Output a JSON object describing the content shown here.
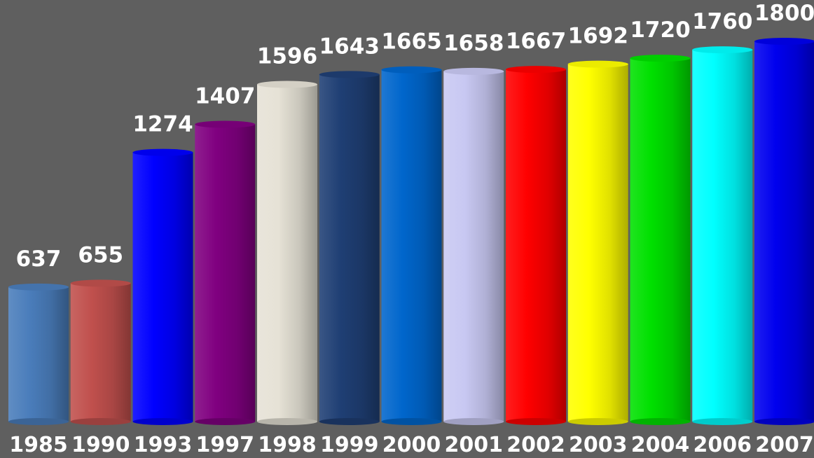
{
  "chart_data": {
    "type": "bar",
    "style": "3d-cylinder",
    "title": "",
    "xlabel": "",
    "ylabel": "",
    "grid": false,
    "legend": "none",
    "ylim": [
      0,
      1800
    ],
    "categories": [
      "1985",
      "1990",
      "1993",
      "1997",
      "1998",
      "1999",
      "2000",
      "2001",
      "2002",
      "2003",
      "2004",
      "2006",
      "2007"
    ],
    "values": [
      637,
      655,
      1274,
      1407,
      1596,
      1643,
      1665,
      1658,
      1667,
      1692,
      1720,
      1760,
      1800
    ],
    "value_labels": [
      "637",
      "655",
      "1274",
      "1407",
      "1596",
      "1643",
      "1665",
      "1658",
      "1667",
      "1692",
      "1720",
      "1760",
      "1800"
    ],
    "colors": [
      "#4a7dbb",
      "#c0504d",
      "#0000ff",
      "#800080",
      "#e6e2d6",
      "#1f3f74",
      "#0066cc",
      "#c8c8f2",
      "#ff0000",
      "#ffff00",
      "#00e000",
      "#00ffff",
      "#0000ee"
    ],
    "background": "#5f5f5f",
    "label_color": "#ffffff"
  }
}
